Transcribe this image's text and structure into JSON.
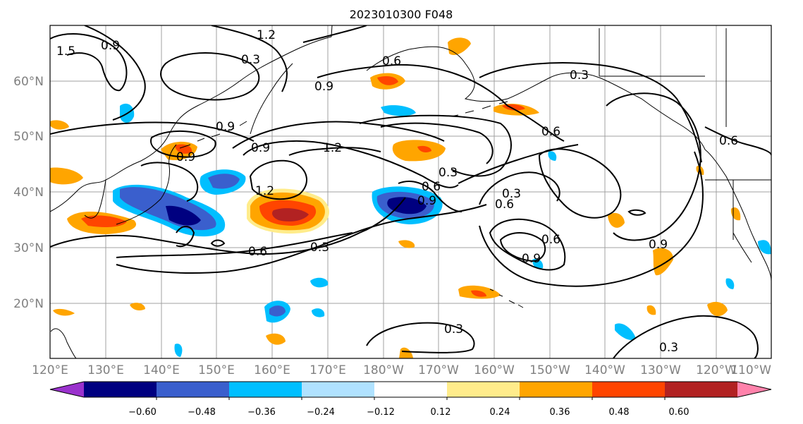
{
  "title": "2023010300 F048",
  "lat_labels": [
    "60°N",
    "50°N",
    "40°N",
    "30°N",
    "20°N"
  ],
  "lon_labels": [
    "120°E",
    "130°E",
    "140°E",
    "150°E",
    "160°E",
    "170°E",
    "180°W",
    "170°W",
    "160°W",
    "150°W",
    "140°W",
    "130°W",
    "120°W",
    "110°W"
  ],
  "colorbar": {
    "colors": [
      "#9a32cd",
      "#000080",
      "#3a5fcd",
      "#00bfff",
      "#b0e2ff",
      "#ffffff",
      "#ffec8b",
      "#ffa500",
      "#ff4500",
      "#b22222",
      "#ff82ab"
    ],
    "tick_labels": [
      "−0.60",
      "−0.48",
      "−0.36",
      "−0.24",
      "−0.12",
      "0.12",
      "0.24",
      "0.36",
      "0.48",
      "0.60"
    ]
  },
  "contour_labels": [
    "1.5",
    "0.9",
    "1.2",
    "0.3",
    "0.9",
    "0.6",
    "0.3",
    "0.9",
    "0.9",
    "1.2",
    "0.9",
    "0.6",
    "0.3",
    "0.6",
    "0.9",
    "1.2",
    "0.6",
    "0.3",
    "0.6",
    "0.3",
    "0.9",
    "0.6",
    "0.9",
    "0.3",
    "0.3",
    "0.6"
  ]
}
